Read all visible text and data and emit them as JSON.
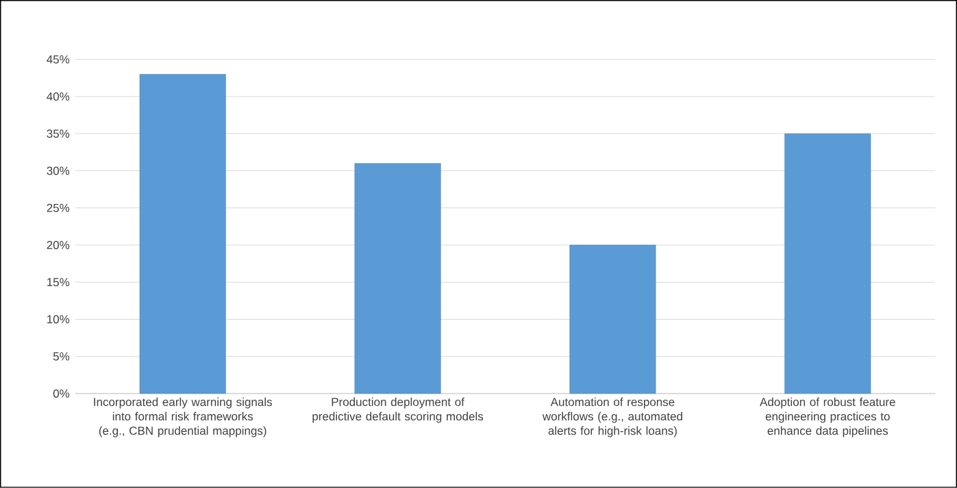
{
  "chart_data": {
    "type": "bar",
    "categories": [
      "Incorporated early warning signals into formal risk frameworks (e.g., CBN prudential mappings)",
      "Production deployment of predictive default scoring models",
      "Automation of response workflows (e.g., automated alerts for high-risk loans)",
      "Adoption of robust feature engineering practices to enhance data pipelines"
    ],
    "values": [
      43,
      31,
      20,
      35
    ],
    "color": "#5b9bd5",
    "ylim": [
      0,
      45
    ],
    "yticks": [
      {
        "value": 0,
        "label": "0%"
      },
      {
        "value": 5,
        "label": "5%"
      },
      {
        "value": 10,
        "label": "10%"
      },
      {
        "value": 15,
        "label": "15%"
      },
      {
        "value": 20,
        "label": "20%"
      },
      {
        "value": 25,
        "label": "25%"
      },
      {
        "value": 30,
        "label": "30%"
      },
      {
        "value": 35,
        "label": "35%"
      },
      {
        "value": 40,
        "label": "40%"
      },
      {
        "value": 45,
        "label": "45%"
      }
    ],
    "grid": "y"
  }
}
